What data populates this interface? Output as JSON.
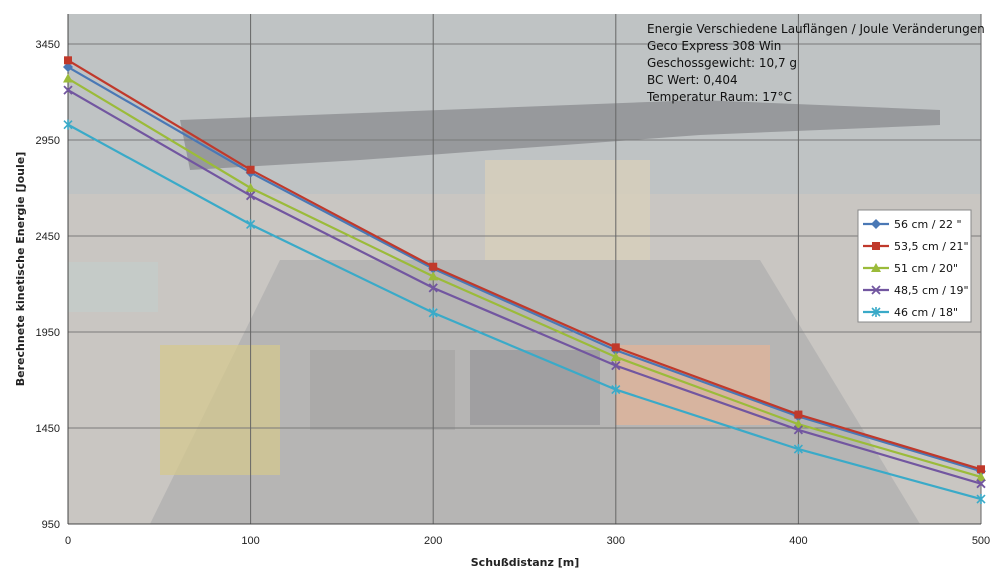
{
  "chart_data": {
    "type": "line",
    "xlabel": "Schußdistanz [m]",
    "ylabel": "Berechnete kinetische Energie [Joule]",
    "x": [
      0,
      100,
      200,
      300,
      400,
      500
    ],
    "xlim": [
      0,
      500
    ],
    "xticks": [
      "0",
      "100",
      "200",
      "300",
      "400",
      "500"
    ],
    "ylim": [
      950,
      3450
    ],
    "yticks": [
      "950",
      "1450",
      "1950",
      "2450",
      "2950",
      "3450"
    ],
    "grid": true,
    "legend_position": "right",
    "annotation_lines": [
      "Energie Verschiedene Lauflängen / Joule Veränderungen",
      "Geco Express 308 Win",
      "Geschossgewicht: 10,7 g",
      "BC Wert: 0,404",
      "Temperatur Raum: 17°C"
    ],
    "series": [
      {
        "name": "56 cm / 22 \"",
        "color": "#4a78b5",
        "marker": "diamond",
        "values": [
          3330,
          2780,
          2280,
          1855,
          1510,
          1225
        ]
      },
      {
        "name": "53,5 cm / 21\"",
        "color": "#c0392b",
        "marker": "square",
        "values": [
          3365,
          2795,
          2290,
          1870,
          1520,
          1235
        ]
      },
      {
        "name": "51 cm / 20\"",
        "color": "#9bbb3a",
        "marker": "triangle",
        "values": [
          3270,
          2700,
          2240,
          1820,
          1470,
          1195
        ]
      },
      {
        "name": "48,5 cm / 19\"",
        "color": "#7256a0",
        "marker": "x",
        "values": [
          3210,
          2660,
          2180,
          1775,
          1440,
          1160
        ]
      },
      {
        "name": "46 cm / 18\"",
        "color": "#3aaac8",
        "marker": "star",
        "values": [
          3030,
          2510,
          2050,
          1650,
          1340,
          1080
        ]
      }
    ]
  }
}
